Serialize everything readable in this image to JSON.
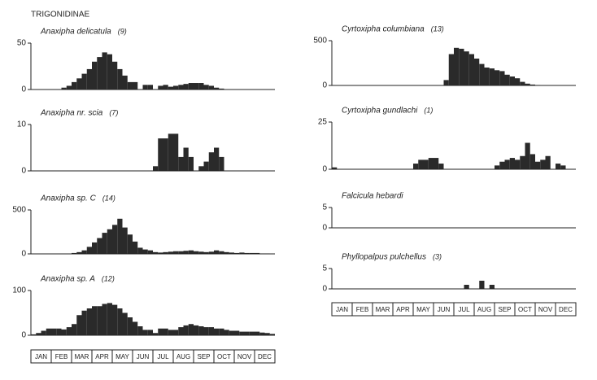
{
  "header": "TRIGONIDINAE",
  "month_axis": [
    "JAN",
    "FEB",
    "MAR",
    "APR",
    "MAY",
    "JUN",
    "JUL",
    "AUG",
    "SEP",
    "OCT",
    "NOV",
    "DEC"
  ],
  "chart_data": [
    {
      "type": "bar",
      "title": "Anaxipha delicatula",
      "count": "(9)",
      "color": "#2a2a2a",
      "ylim": [
        0,
        50
      ],
      "yticks": [
        0,
        50
      ],
      "values": [
        0,
        0,
        0,
        0,
        0,
        0,
        2,
        4,
        8,
        12,
        17,
        22,
        30,
        35,
        40,
        38,
        30,
        22,
        15,
        8,
        8,
        0,
        5,
        5,
        0,
        4,
        5,
        3,
        4,
        5,
        6,
        7,
        7,
        7,
        5,
        4,
        2,
        1,
        0,
        0,
        0,
        0,
        0,
        0,
        0,
        0,
        0,
        0
      ]
    },
    {
      "type": "bar",
      "title": "Anaxipha nr. scia",
      "count": "(7)",
      "color": "#2a2a2a",
      "ylim": [
        0,
        10
      ],
      "yticks": [
        0,
        10
      ],
      "values": [
        0,
        0,
        0,
        0,
        0,
        0,
        0,
        0,
        0,
        0,
        0,
        0,
        0,
        0,
        0,
        0,
        0,
        0,
        0,
        0,
        0,
        0,
        0,
        0,
        1,
        7,
        7,
        8,
        8,
        3,
        5,
        3,
        0,
        1,
        2,
        4,
        5,
        3,
        0,
        0,
        0,
        0,
        0,
        0,
        0,
        0,
        0,
        0
      ]
    },
    {
      "type": "bar",
      "title": "Anaxipha sp. C",
      "count": "(14)",
      "color": "#2a2a2a",
      "ylim": [
        0,
        500
      ],
      "yticks": [
        0,
        500
      ],
      "values": [
        0,
        0,
        0,
        0,
        0,
        0,
        0,
        0,
        10,
        20,
        40,
        80,
        130,
        180,
        240,
        280,
        330,
        400,
        300,
        220,
        140,
        70,
        50,
        40,
        20,
        15,
        20,
        25,
        30,
        30,
        35,
        40,
        30,
        25,
        20,
        25,
        40,
        30,
        20,
        15,
        10,
        15,
        10,
        10,
        10,
        5,
        5,
        0
      ]
    },
    {
      "type": "bar",
      "title": "Anaxipha sp. A",
      "count": "(12)",
      "color": "#2a2a2a",
      "ylim": [
        0,
        100
      ],
      "yticks": [
        0,
        100
      ],
      "values": [
        2,
        5,
        10,
        15,
        15,
        15,
        13,
        18,
        25,
        45,
        55,
        60,
        65,
        65,
        70,
        72,
        68,
        60,
        50,
        40,
        30,
        20,
        12,
        12,
        5,
        15,
        15,
        12,
        12,
        18,
        22,
        25,
        22,
        20,
        18,
        18,
        15,
        15,
        12,
        10,
        10,
        8,
        8,
        8,
        8,
        6,
        5,
        3
      ]
    },
    {
      "type": "bar",
      "title": "Cyrtoxipha columbiana",
      "count": "(13)",
      "color": "#2a2a2a",
      "ylim": [
        0,
        500
      ],
      "yticks": [
        0,
        500
      ],
      "values": [
        0,
        0,
        0,
        0,
        0,
        0,
        0,
        0,
        0,
        0,
        0,
        0,
        0,
        0,
        0,
        0,
        0,
        0,
        0,
        0,
        0,
        0,
        60,
        350,
        420,
        410,
        380,
        350,
        300,
        240,
        200,
        190,
        170,
        160,
        120,
        100,
        80,
        40,
        20,
        10,
        5,
        2,
        0,
        0,
        0,
        0,
        0,
        0
      ]
    },
    {
      "type": "bar",
      "title": "Cyrtoxipha gundlachi",
      "count": "(1)",
      "color": "#2a2a2a",
      "ylim": [
        0,
        25
      ],
      "yticks": [
        0,
        25
      ],
      "values": [
        1,
        0,
        0,
        0,
        0,
        0,
        0,
        0,
        0,
        0,
        0,
        0,
        0,
        0,
        0,
        0,
        3,
        5,
        5,
        6,
        6,
        3,
        0,
        0,
        0,
        0,
        0,
        0,
        0,
        0,
        0,
        0,
        2,
        4,
        5,
        6,
        5,
        7,
        14,
        8,
        4,
        5,
        7,
        0,
        3,
        2,
        0,
        0
      ]
    },
    {
      "type": "bar",
      "title": "Falcicula hebardi",
      "color": "#2a2a2a",
      "ylim": [
        0,
        5
      ],
      "yticks": [
        0,
        5
      ],
      "values": [
        0,
        0,
        0,
        0,
        0,
        0,
        0,
        0,
        0,
        0,
        0,
        0,
        0,
        0,
        0,
        0,
        0,
        0,
        0,
        0,
        0,
        0,
        0,
        0,
        0,
        0,
        0,
        0,
        0,
        0,
        0,
        0,
        0,
        0,
        0,
        0,
        0,
        0,
        0,
        0,
        0,
        0,
        0,
        0,
        0,
        0,
        0,
        0
      ]
    },
    {
      "type": "bar",
      "title": "Phyllopalpus pulchellus",
      "count": "(3)",
      "color": "#2a2a2a",
      "ylim": [
        0,
        5
      ],
      "yticks": [
        0,
        5
      ],
      "values": [
        0,
        0,
        0,
        0,
        0,
        0,
        0,
        0,
        0,
        0,
        0,
        0,
        0,
        0,
        0,
        0,
        0,
        0,
        0,
        0,
        0,
        0,
        0,
        0,
        0,
        0,
        1,
        0,
        0,
        2,
        0,
        1,
        0,
        0,
        0,
        0,
        0,
        0,
        0,
        0,
        0,
        0,
        0,
        0,
        0,
        0,
        0,
        0
      ]
    }
  ]
}
